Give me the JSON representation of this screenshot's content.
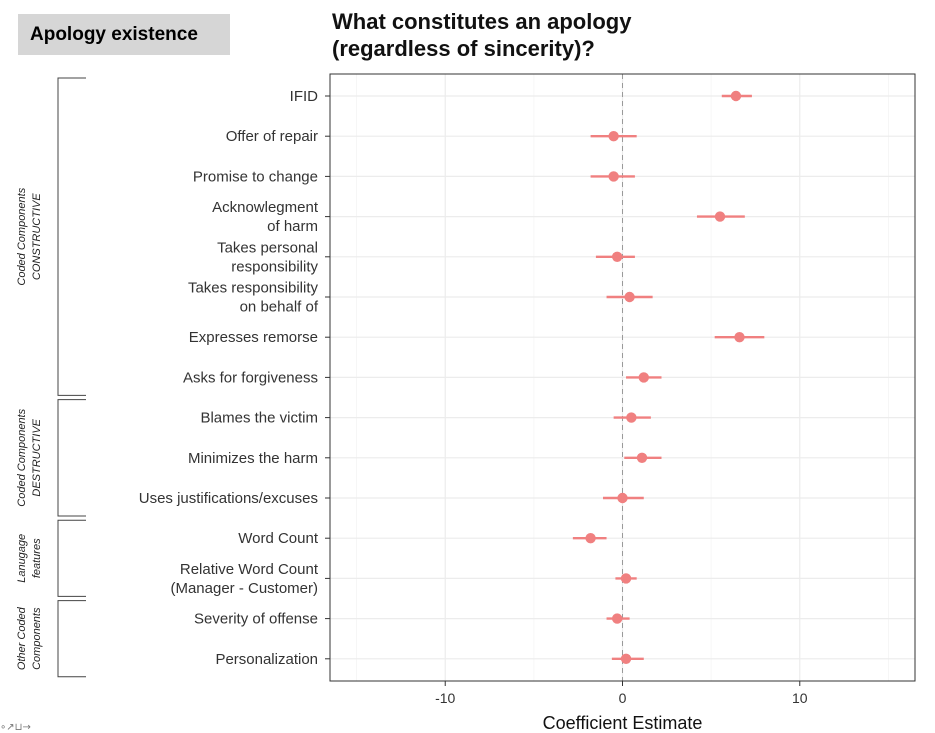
{
  "badge": "Apology existence",
  "title_lines": [
    "What constitutes an apology",
    "(regardless of sincerity)?"
  ],
  "corner_glyph": "∘↗⊔→",
  "chart_data": {
    "type": "scatter",
    "subtype": "coefficient-plot-with-error-bars",
    "title": "What constitutes an apology (regardless of sincerity)?",
    "xlabel": "Coefficient Estimate",
    "ylabel": "",
    "xlim": [
      -16.5,
      16.5
    ],
    "xticks": [
      -10,
      0,
      10
    ],
    "reference_line": 0,
    "grid": true,
    "point_color": "#f08080",
    "groups": [
      {
        "label_lines": [
          "Coded Components",
          "CONSTRUCTIVE"
        ],
        "first": 0,
        "last": 7
      },
      {
        "label_lines": [
          "Coded Components",
          "DESTRUCTIVE"
        ],
        "first": 8,
        "last": 10
      },
      {
        "label_lines": [
          "Lanugage",
          "features"
        ],
        "first": 11,
        "last": 12
      },
      {
        "label_lines": [
          "Other Coded",
          "Components"
        ],
        "first": 13,
        "last": 14
      }
    ],
    "rows": [
      {
        "label": [
          "IFID"
        ],
        "estimate": 6.4,
        "low": 5.6,
        "high": 7.3
      },
      {
        "label": [
          "Offer of repair"
        ],
        "estimate": -0.5,
        "low": -1.8,
        "high": 0.8
      },
      {
        "label": [
          "Promise to change"
        ],
        "estimate": -0.5,
        "low": -1.8,
        "high": 0.7
      },
      {
        "label": [
          "Acknowlegment",
          "of harm"
        ],
        "estimate": 5.5,
        "low": 4.2,
        "high": 6.9
      },
      {
        "label": [
          "Takes personal",
          "responsibility"
        ],
        "estimate": -0.3,
        "low": -1.5,
        "high": 0.7
      },
      {
        "label": [
          "Takes responsibility",
          "on behalf of"
        ],
        "estimate": 0.4,
        "low": -0.9,
        "high": 1.7
      },
      {
        "label": [
          "Expresses remorse"
        ],
        "estimate": 6.6,
        "low": 5.2,
        "high": 8.0
      },
      {
        "label": [
          "Asks for forgiveness"
        ],
        "estimate": 1.2,
        "low": 0.2,
        "high": 2.2
      },
      {
        "label": [
          "Blames the victim"
        ],
        "estimate": 0.5,
        "low": -0.5,
        "high": 1.6
      },
      {
        "label": [
          "Minimizes the harm"
        ],
        "estimate": 1.1,
        "low": 0.1,
        "high": 2.2
      },
      {
        "label": [
          "Uses justifications/excuses"
        ],
        "estimate": 0.0,
        "low": -1.1,
        "high": 1.2
      },
      {
        "label": [
          "Word Count"
        ],
        "estimate": -1.8,
        "low": -2.8,
        "high": -0.9
      },
      {
        "label": [
          "Relative Word Count",
          "(Manager - Customer)"
        ],
        "estimate": 0.2,
        "low": -0.4,
        "high": 0.8
      },
      {
        "label": [
          "Severity of offense"
        ],
        "estimate": -0.3,
        "low": -0.9,
        "high": 0.4
      },
      {
        "label": [
          "Personalization"
        ],
        "estimate": 0.2,
        "low": -0.6,
        "high": 1.2
      }
    ]
  }
}
